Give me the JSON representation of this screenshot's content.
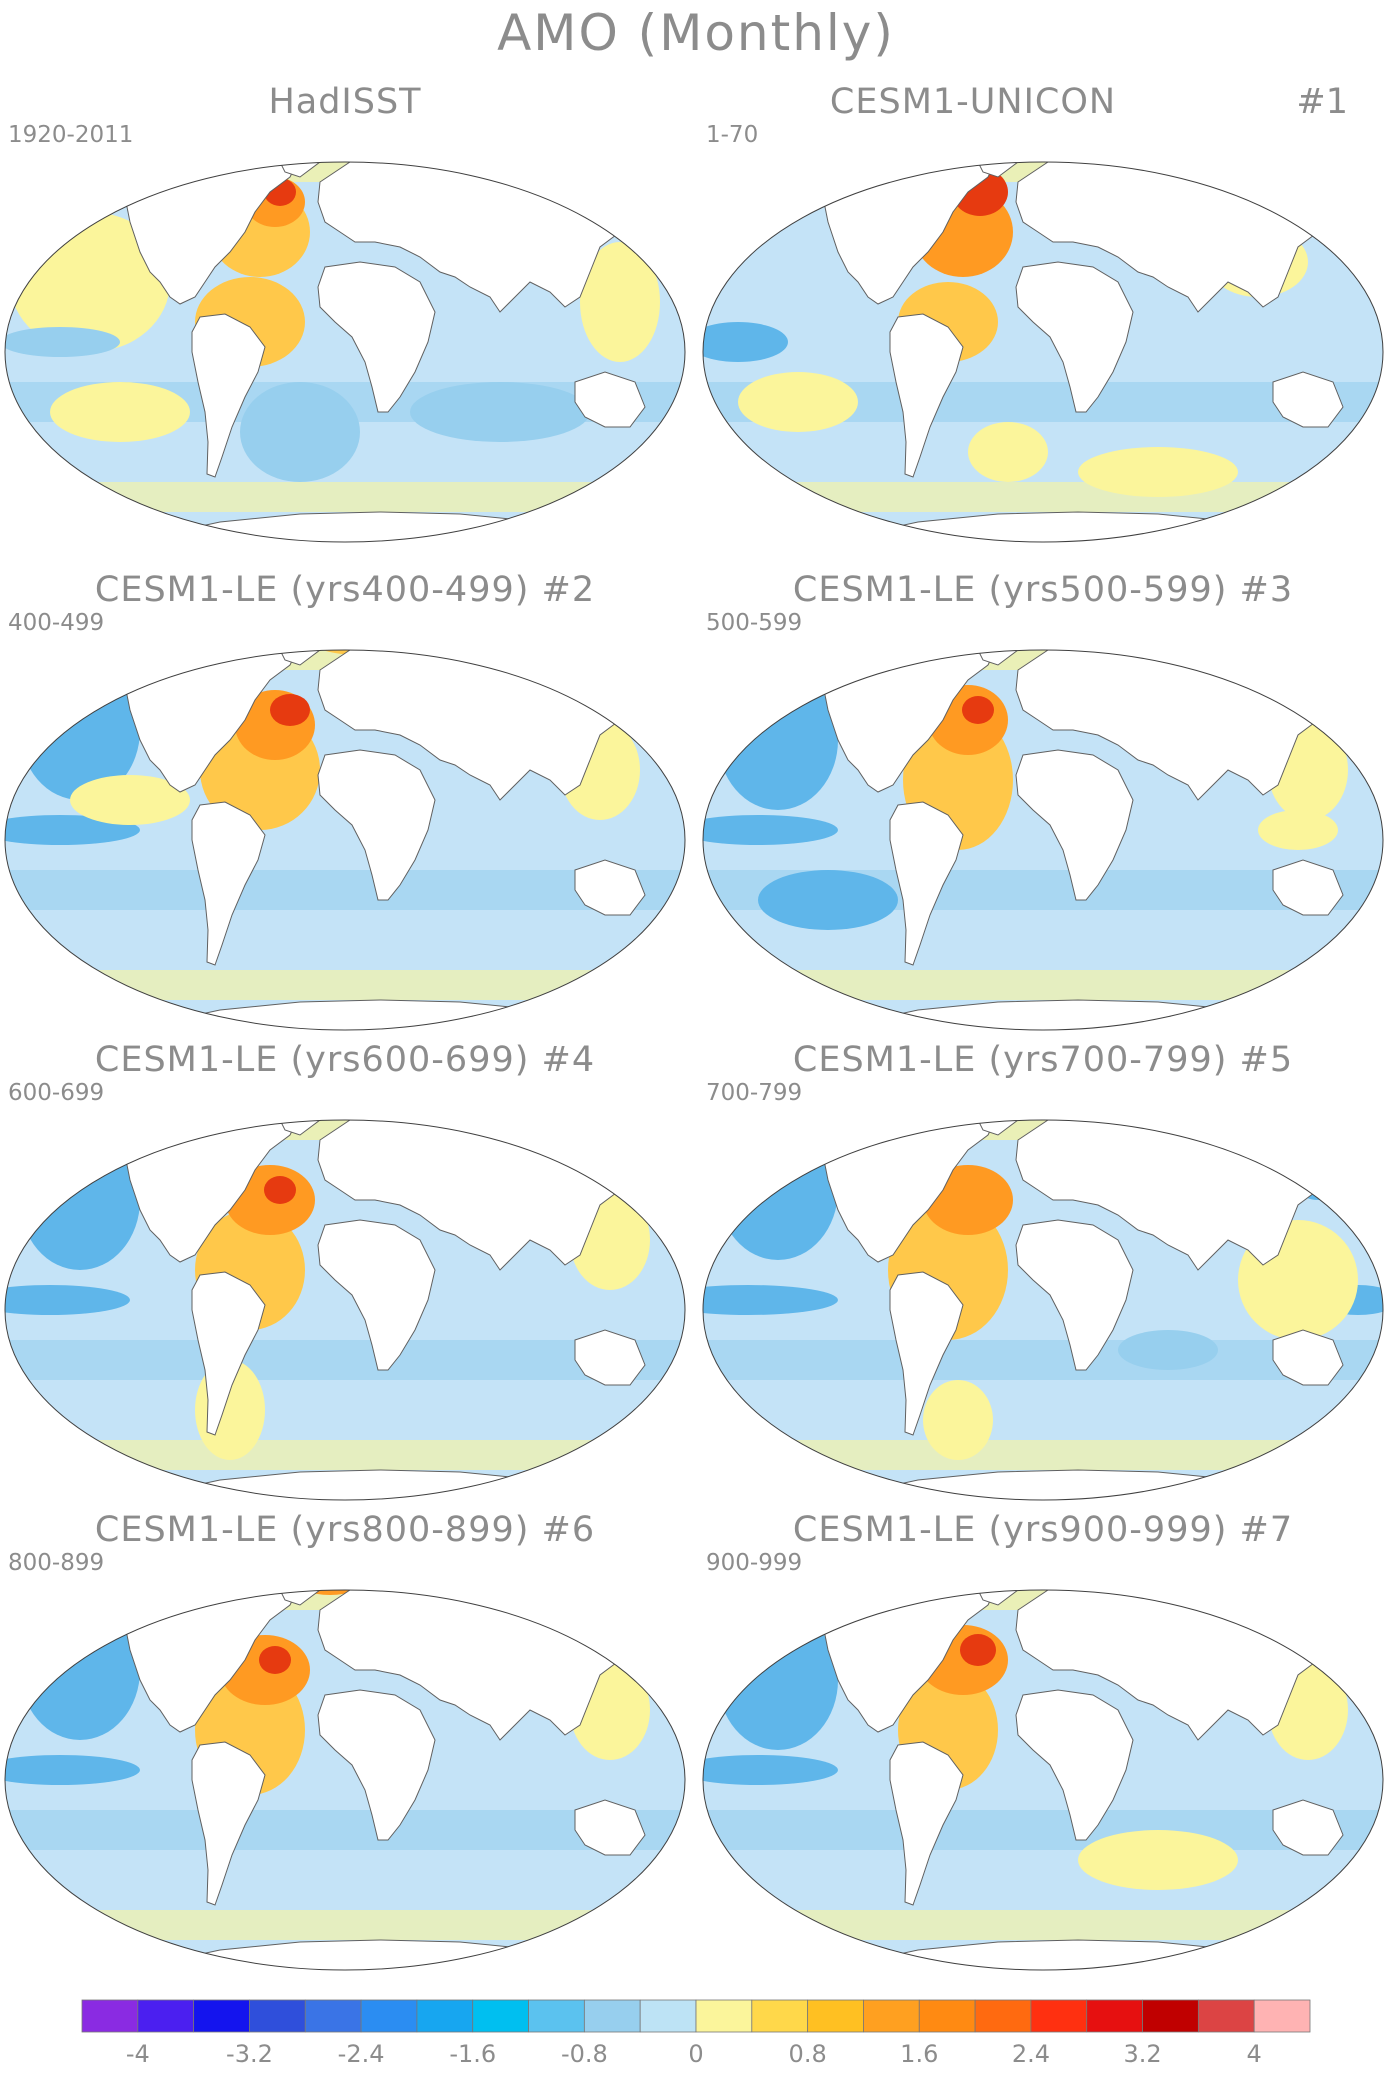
{
  "title": "AMO (Monthly)",
  "panels": [
    {
      "label": "HadISST",
      "number": "",
      "years": "1920-2011"
    },
    {
      "label": "CESM1-UNICON",
      "number": "#1",
      "years": "1-70"
    },
    {
      "label": "CESM1-LE (yrs400-499)",
      "number": "#2",
      "years": "400-499"
    },
    {
      "label": "CESM1-LE (yrs500-599)",
      "number": "#3",
      "years": "500-599"
    },
    {
      "label": "CESM1-LE (yrs600-699)",
      "number": "#4",
      "years": "600-699"
    },
    {
      "label": "CESM1-LE (yrs700-799)",
      "number": "#5",
      "years": "700-799"
    },
    {
      "label": "CESM1-LE (yrs800-899)",
      "number": "#6",
      "years": "800-899"
    },
    {
      "label": "CESM1-LE (yrs900-999)",
      "number": "#7",
      "years": "900-999"
    }
  ],
  "colorbar": {
    "labels": [
      "-4",
      "-3.2",
      "-2.4",
      "-1.6",
      "-0.8",
      "0",
      "0.8",
      "1.6",
      "2.4",
      "3.2",
      "4"
    ],
    "colors": [
      "#8a2be2",
      "#4b1ff0",
      "#1414ee",
      "#2f4fdb",
      "#3a74e6",
      "#2b8df2",
      "#17a6f0",
      "#00bff0",
      "#5bc2ef",
      "#97cfee",
      "#bde3f5",
      "#fbf59b",
      "#ffd84a",
      "#ffc022",
      "#ffa020",
      "#ff8a12",
      "#ff6a10",
      "#ff3010",
      "#e61010",
      "#c00000",
      "#dc4444",
      "#ffb3b3"
    ]
  },
  "map_colors": {
    "ocean_neutral_cool": "#c4e3f7",
    "ocean_cool": "#97cfee",
    "ocean_cold": "#5fb6ea",
    "ocean_warm_light": "#fbf59b",
    "ocean_warm": "#ffc84a",
    "ocean_hot": "#ff9a22",
    "ocean_hottest": "#e63a10",
    "land": "#ffffff",
    "coast": "#606060"
  }
}
